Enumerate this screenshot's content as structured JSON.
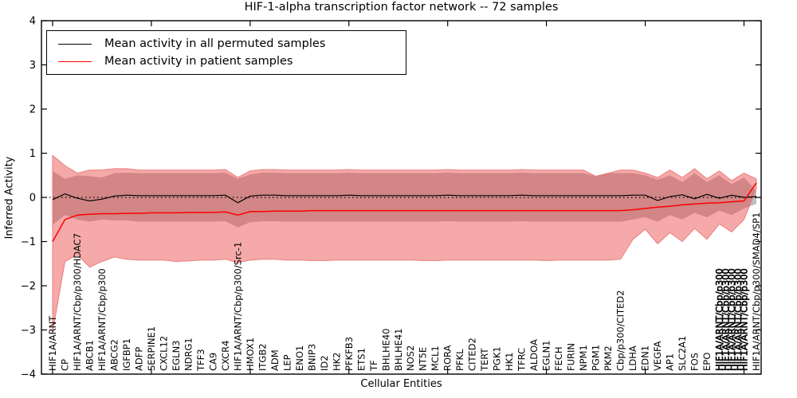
{
  "chart_data": {
    "type": "line",
    "title": "HIF-1-alpha transcription factor network -- 72 samples",
    "xlabel": "Cellular Entities",
    "ylabel": "Inferred Activity",
    "ylim": [
      -4,
      4
    ],
    "yticks": [
      4,
      3,
      2,
      1,
      0,
      -1,
      -2,
      -3,
      -4
    ],
    "grid": false,
    "zero_line": {
      "y": 0,
      "style": "dotted",
      "color": "#000000"
    },
    "legend_position": "upper-left",
    "categories": [
      "HIF1A/ARNT",
      "CP",
      "HIF1A/ARNT/Cbp/p300/HDAC7",
      "ABCB1",
      "HIF1A/ARNT/Cbp/p300",
      "ABCG2",
      "IGFBP1",
      "ADFP",
      "SERPINE1",
      "CXCL12",
      "EGLN3",
      "NDRG1",
      "TFF3",
      "CA9",
      "CXCR4",
      "HIF1A/ARNT/Cbp/p300/Src-1",
      "HMOX1",
      "ITGB2",
      "ADM",
      "LEP",
      "ENO1",
      "BNIP3",
      "ID2",
      "HK2",
      "PFKFB3",
      "ETS1",
      "TF",
      "BHLHE40",
      "BHLHE41",
      "NOS2",
      "NT5E",
      "MCL1",
      "RORA",
      "PFKL",
      "CITED2",
      "TERT",
      "PGK1",
      "HK1",
      "TFRC",
      "ALDOA",
      "EGLN1",
      "FECH",
      "FURIN",
      "NPM1",
      "PGM1",
      "PKM2",
      "Cbp/p300/CITED2",
      "LDHA",
      "EDN1",
      "VEGFA",
      "AP1",
      "SLC2A1",
      "FOS",
      "EPO",
      "",
      "",
      "",
      "HIF1A/ARNT/Cbp/p300/SMAD4/SP1"
    ],
    "overlap_blob": {
      "note": "several unreadable overlapping labels",
      "label_fragment": "HIF1A/ARNT/Cbp/p300",
      "copies": 5,
      "start_index": 54,
      "end_index": 56
    },
    "top_tick_indices": [
      0,
      8,
      16,
      24,
      32,
      40,
      48,
      56
    ],
    "series": [
      {
        "name": "Mean activity in all permuted samples",
        "color": "#000000",
        "line_width": 1.2,
        "values": [
          -0.05,
          0.08,
          -0.02,
          -0.08,
          -0.04,
          0.03,
          0.05,
          0.04,
          0.04,
          0.04,
          0.04,
          0.04,
          0.04,
          0.04,
          0.05,
          -0.12,
          0.03,
          0.05,
          0.05,
          0.04,
          0.04,
          0.04,
          0.04,
          0.04,
          0.05,
          0.04,
          0.04,
          0.04,
          0.04,
          0.04,
          0.04,
          0.04,
          0.05,
          0.04,
          0.04,
          0.04,
          0.04,
          0.04,
          0.05,
          0.04,
          0.04,
          0.04,
          0.04,
          0.04,
          0.04,
          0.04,
          0.04,
          0.05,
          0.05,
          -0.07,
          0.02,
          0.06,
          -0.03,
          0.07,
          -0.02,
          0.05,
          0.0,
          0.02
        ],
        "band": {
          "color": "#707070",
          "opacity": 0.45,
          "upper": [
            0.6,
            0.42,
            0.5,
            0.48,
            0.45,
            0.55,
            0.56,
            0.55,
            0.55,
            0.55,
            0.55,
            0.55,
            0.55,
            0.55,
            0.56,
            0.42,
            0.52,
            0.56,
            0.56,
            0.55,
            0.55,
            0.55,
            0.55,
            0.55,
            0.56,
            0.55,
            0.55,
            0.55,
            0.55,
            0.55,
            0.55,
            0.55,
            0.56,
            0.55,
            0.55,
            0.55,
            0.55,
            0.55,
            0.56,
            0.55,
            0.55,
            0.55,
            0.55,
            0.55,
            0.48,
            0.55,
            0.55,
            0.55,
            0.5,
            0.4,
            0.5,
            0.35,
            0.55,
            0.35,
            0.5,
            0.3,
            0.45,
            0.15
          ],
          "lower": [
            -0.62,
            -0.4,
            -0.5,
            -0.55,
            -0.5,
            -0.52,
            -0.52,
            -0.55,
            -0.55,
            -0.55,
            -0.55,
            -0.55,
            -0.55,
            -0.55,
            -0.54,
            -0.68,
            -0.56,
            -0.54,
            -0.54,
            -0.55,
            -0.55,
            -0.55,
            -0.55,
            -0.55,
            -0.55,
            -0.55,
            -0.55,
            -0.55,
            -0.55,
            -0.55,
            -0.55,
            -0.55,
            -0.54,
            -0.55,
            -0.55,
            -0.55,
            -0.55,
            -0.55,
            -0.54,
            -0.55,
            -0.55,
            -0.55,
            -0.55,
            -0.55,
            -0.55,
            -0.55,
            -0.55,
            -0.5,
            -0.45,
            -0.55,
            -0.4,
            -0.5,
            -0.35,
            -0.45,
            -0.3,
            -0.4,
            -0.25,
            -0.15
          ]
        }
      },
      {
        "name": "Mean activity in patient samples",
        "color": "#ff0000",
        "line_width": 1.5,
        "values": [
          -1.0,
          -0.5,
          -0.4,
          -0.38,
          -0.37,
          -0.37,
          -0.36,
          -0.36,
          -0.35,
          -0.35,
          -0.35,
          -0.34,
          -0.34,
          -0.34,
          -0.33,
          -0.4,
          -0.32,
          -0.32,
          -0.31,
          -0.31,
          -0.31,
          -0.3,
          -0.3,
          -0.3,
          -0.3,
          -0.3,
          -0.3,
          -0.3,
          -0.3,
          -0.3,
          -0.3,
          -0.3,
          -0.3,
          -0.3,
          -0.3,
          -0.3,
          -0.3,
          -0.3,
          -0.3,
          -0.3,
          -0.3,
          -0.3,
          -0.3,
          -0.3,
          -0.3,
          -0.3,
          -0.3,
          -0.28,
          -0.25,
          -0.22,
          -0.2,
          -0.17,
          -0.15,
          -0.13,
          -0.12,
          -0.1,
          -0.08,
          0.33
        ],
        "band": {
          "color": "#e84040",
          "opacity": 0.45,
          "edge_color": "#e87070",
          "upper": [
            0.95,
            0.72,
            0.55,
            0.62,
            0.62,
            0.65,
            0.65,
            0.62,
            0.62,
            0.62,
            0.62,
            0.62,
            0.62,
            0.62,
            0.63,
            0.45,
            0.6,
            0.63,
            0.63,
            0.62,
            0.62,
            0.62,
            0.62,
            0.62,
            0.63,
            0.62,
            0.62,
            0.62,
            0.62,
            0.62,
            0.62,
            0.62,
            0.63,
            0.62,
            0.62,
            0.62,
            0.62,
            0.62,
            0.63,
            0.62,
            0.62,
            0.62,
            0.62,
            0.62,
            0.48,
            0.55,
            0.62,
            0.62,
            0.55,
            0.45,
            0.62,
            0.45,
            0.65,
            0.42,
            0.6,
            0.38,
            0.55,
            0.42
          ],
          "lower": [
            -3.05,
            -1.45,
            -1.3,
            -1.58,
            -1.45,
            -1.35,
            -1.4,
            -1.42,
            -1.42,
            -1.42,
            -1.45,
            -1.44,
            -1.42,
            -1.42,
            -1.4,
            -1.48,
            -1.42,
            -1.4,
            -1.4,
            -1.42,
            -1.42,
            -1.43,
            -1.43,
            -1.42,
            -1.42,
            -1.42,
            -1.42,
            -1.42,
            -1.42,
            -1.42,
            -1.43,
            -1.43,
            -1.42,
            -1.42,
            -1.42,
            -1.42,
            -1.42,
            -1.42,
            -1.42,
            -1.42,
            -1.43,
            -1.42,
            -1.42,
            -1.42,
            -1.42,
            -1.42,
            -1.4,
            -0.95,
            -0.72,
            -1.05,
            -0.8,
            -1.0,
            -0.7,
            -0.95,
            -0.6,
            -0.78,
            -0.5,
            0.2
          ]
        }
      }
    ]
  }
}
